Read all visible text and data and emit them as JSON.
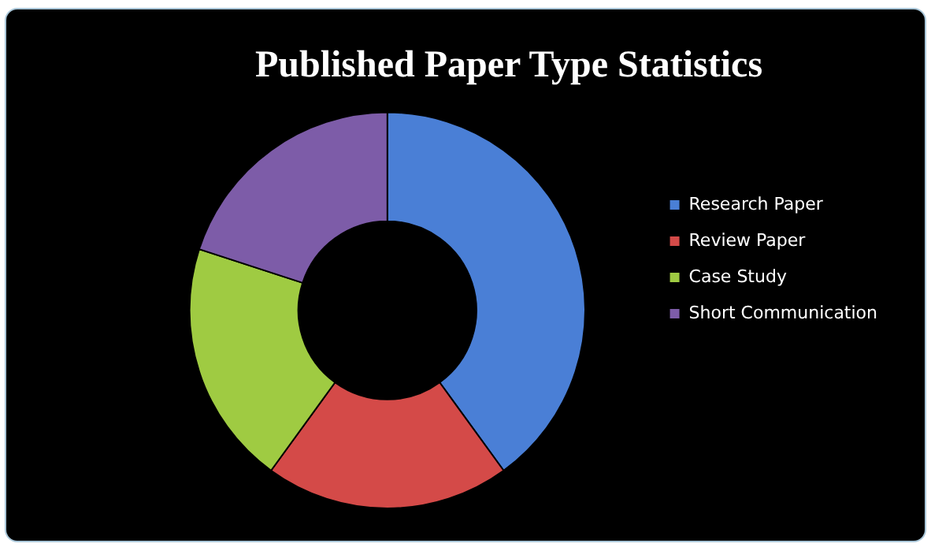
{
  "chart_data": {
    "type": "donut",
    "title": "Published Paper Type Statistics",
    "categories": [
      "Research Paper",
      "Review Paper",
      "Case Study",
      "Short Communication"
    ],
    "values": [
      40,
      20,
      20,
      20
    ],
    "colors": [
      "#4a7fd6",
      "#d44a48",
      "#9fcb42",
      "#7d5ca8"
    ],
    "legend": "right"
  }
}
